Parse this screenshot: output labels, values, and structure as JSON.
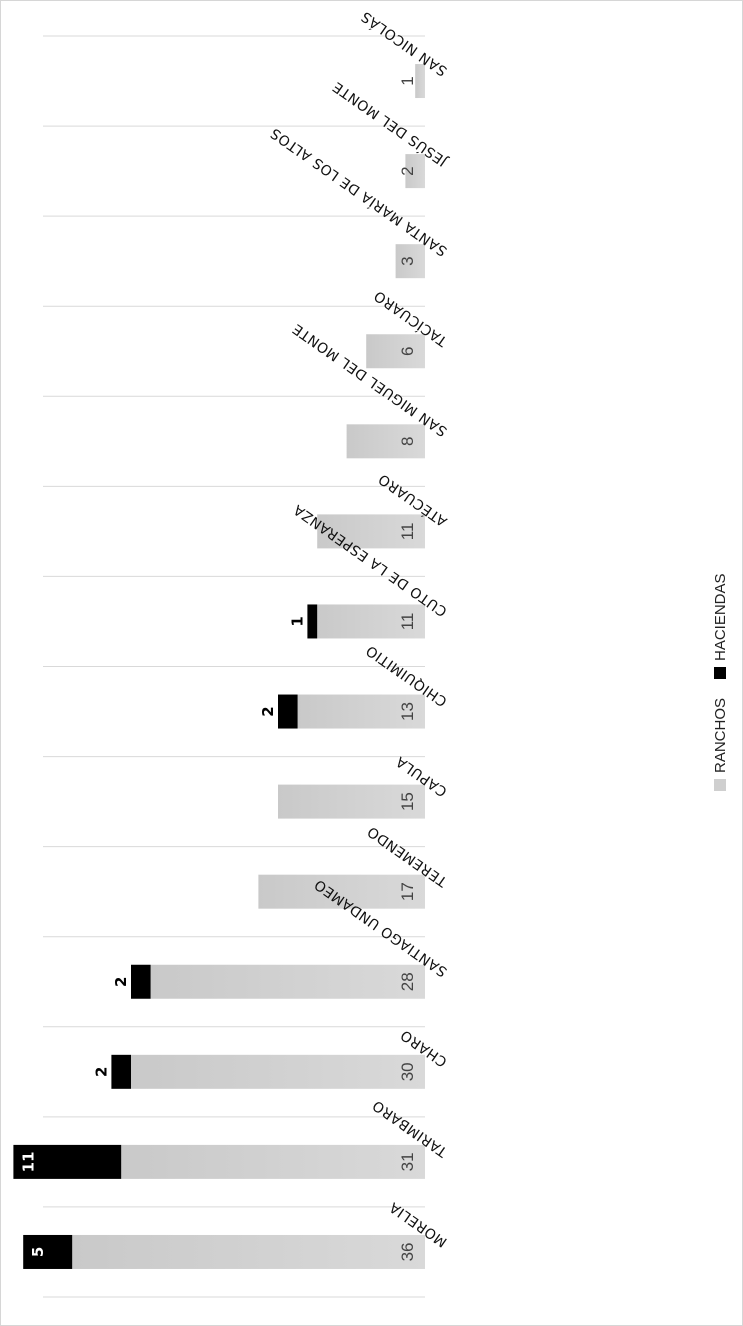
{
  "chart_data": {
    "type": "bar",
    "orientation": "horizontal-stacked",
    "title": "",
    "xlabel": "",
    "ylabel": "",
    "categories": [
      "MORELIA",
      "TARIMBARO",
      "CHARO",
      "SANTIAGO UNDAMEO",
      "TEREMENDO",
      "CAPULA",
      "CHIQUIMITIO",
      "CUTO DE LA ESPERANZA",
      "ATÉCUARO",
      "SAN MIGUEL DEL MONTE",
      "TACÍCUARO",
      "SANTA MARÍA DE LOS ALTOS",
      "JESÚS DEL MONTE",
      "SAN NICOLÁS"
    ],
    "series": [
      {
        "name": "RANCHOS",
        "color": "#cfcfcf",
        "values": [
          36,
          31,
          30,
          28,
          17,
          15,
          13,
          11,
          11,
          8,
          6,
          3,
          2,
          1
        ]
      },
      {
        "name": "HACIENDAS",
        "color": "#000000",
        "values": [
          5,
          11,
          2,
          2,
          null,
          null,
          2,
          1,
          null,
          null,
          null,
          null,
          null,
          null
        ]
      }
    ],
    "xlim": [
      0,
      45
    ],
    "grid": true,
    "legend_position": "bottom"
  }
}
